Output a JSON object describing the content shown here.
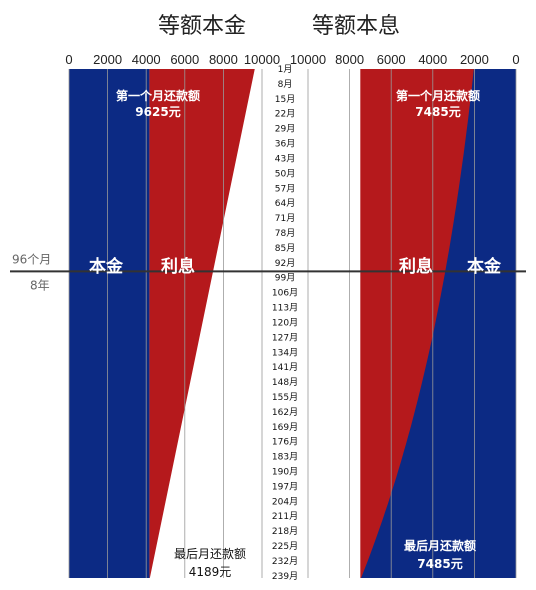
{
  "titles": {
    "left": "等额本金",
    "right": "等额本息"
  },
  "colors": {
    "principal": "#0c2a84",
    "interest": "#b5191c",
    "divider": "#333333",
    "grid": "#999999"
  },
  "chart_data": [
    {
      "type": "area",
      "title": "等额本金",
      "axis_ticks": [
        "0",
        "2000",
        "4000",
        "6000",
        "8000",
        "10000"
      ],
      "xlim": [
        0,
        10000
      ],
      "month_labels": [
        "1月",
        "8月",
        "15月",
        "22月",
        "29月",
        "36月",
        "43月",
        "50月",
        "57月",
        "64月",
        "71月",
        "78月",
        "85月",
        "92月",
        "99月",
        "106月",
        "113月",
        "120月",
        "127月",
        "134月",
        "141月",
        "148月",
        "155月",
        "162月",
        "169月",
        "176月",
        "183月",
        "190月",
        "197月",
        "204月",
        "211月",
        "218月",
        "225月",
        "232月",
        "239月"
      ],
      "series": [
        {
          "name": "本金",
          "x": [
            1,
            240
          ],
          "values": [
            4167,
            4167
          ]
        },
        {
          "name": "利息",
          "x": [
            1,
            240
          ],
          "values": [
            5458,
            22
          ]
        }
      ],
      "totals": {
        "x": [
          1,
          240
        ],
        "values": [
          9625,
          4189
        ]
      },
      "annotations": [
        {
          "text": "第一个月还款额",
          "value_text": "9625元"
        },
        {
          "text": "最后月还款额",
          "value_text": "4189元"
        }
      ]
    },
    {
      "type": "area",
      "title": "等额本息",
      "axis_ticks": [
        "10000",
        "8000",
        "6000",
        "4000",
        "2000",
        "0"
      ],
      "xlim": [
        10000,
        0
      ],
      "series": [
        {
          "name": "本金",
          "x": [
            1,
            240
          ],
          "values": [
            2027,
            7448
          ]
        },
        {
          "name": "利息",
          "x": [
            1,
            240
          ],
          "values": [
            5458,
            37
          ]
        }
      ],
      "totals": {
        "x": [
          1,
          240
        ],
        "values": [
          7485,
          7485
        ]
      },
      "annotations": [
        {
          "text": "第一个月还款额",
          "value_text": "7485元"
        },
        {
          "text": "最后月还款额",
          "value_text": "7485元"
        }
      ]
    }
  ],
  "divider": {
    "month": 96,
    "label": "96个月",
    "sub_label": "8年"
  },
  "region_labels": {
    "principal": "本金",
    "interest": "利息"
  }
}
